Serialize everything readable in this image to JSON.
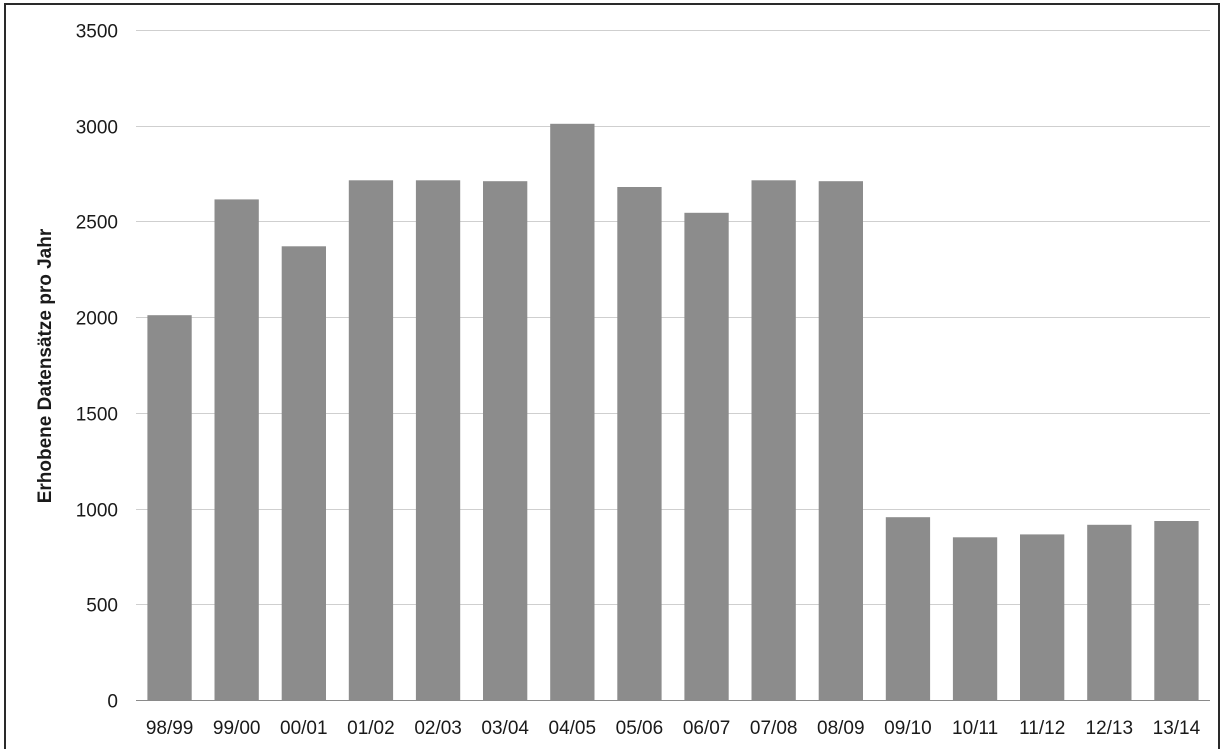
{
  "chart_data": {
    "type": "bar",
    "title": "",
    "xlabel": "",
    "ylabel": "Erhobene Datensätze pro Jahr",
    "categories": [
      "98/99",
      "99/00",
      "00/01",
      "01/02",
      "02/03",
      "03/04",
      "04/05",
      "05/06",
      "06/07",
      "07/08",
      "08/09",
      "09/10",
      "10/11",
      "11/12",
      "12/13",
      "13/14"
    ],
    "values": [
      2010,
      2615,
      2370,
      2715,
      2715,
      2710,
      3010,
      2680,
      2545,
      2715,
      2710,
      955,
      850,
      865,
      915,
      935
    ],
    "ylim": [
      0,
      3500
    ],
    "yticks": [
      0,
      500,
      1000,
      1500,
      2000,
      2500,
      3000,
      3500
    ],
    "grid": true,
    "legend": "none",
    "colors": {
      "bar": "#8c8c8c",
      "grid": "#cfcfcf",
      "text": "#1a1a1a"
    }
  }
}
